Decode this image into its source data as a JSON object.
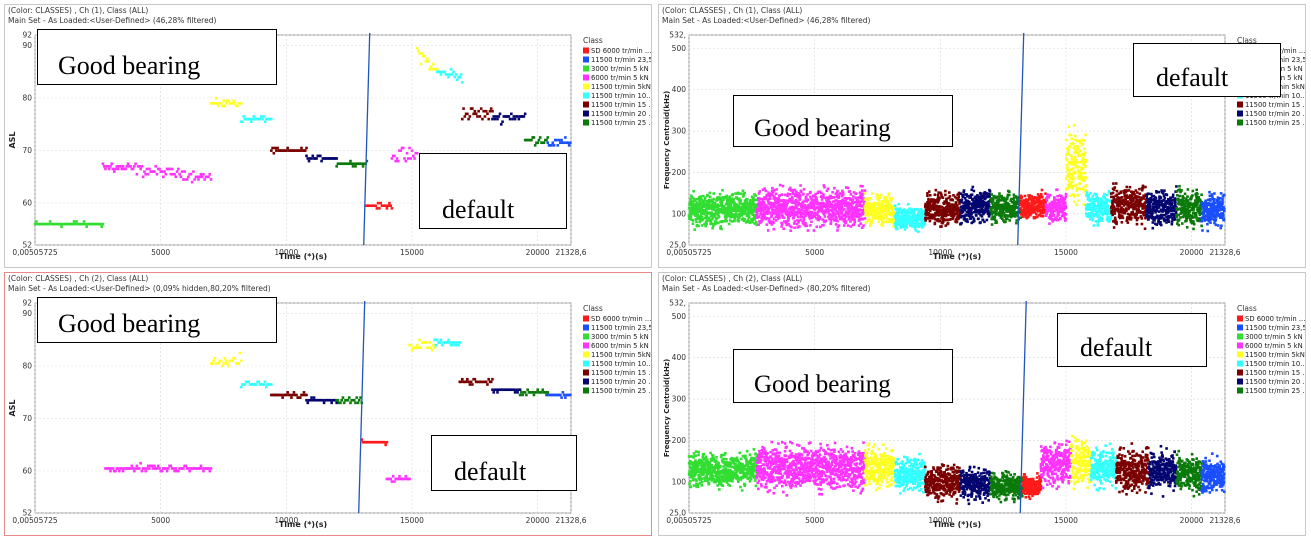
{
  "colors": {
    "SD 6000 tr/min": "#ff1a1a",
    "11500 tr/min 23,5": "#1a4fff",
    "3000 tr/min 5 kN": "#33dd33",
    "6000 tr/min 5 kN": "#ff33ff",
    "11500 tr/min 5kN": "#ffff22",
    "11500 tr/min 10": "#33ffff",
    "11500 tr/min 15": "#7a0000",
    "11500 tr/min 20": "#050570",
    "11500 tr/min 25": "#0a7a0a",
    "divider": "#2255bb"
  },
  "legend": {
    "title": "Class",
    "entries": [
      "SD 6000 tr/min ...",
      "11500 tr/min 23,5",
      "3000 tr/min 5 kN",
      "6000 tr/min 5 kN",
      "11500 tr/min 5kN",
      "11500 tr/min 10...",
      "11500 tr/min 15 ...",
      "11500 tr/min 20 ...",
      "11500 tr/min 25 ..."
    ]
  },
  "panels": {
    "top_left": {
      "header1": "(Color: CLASSES) , Ch (1), Class (ALL)",
      "header2": "Main Set - As Loaded:<User-Defined> (46,28% filtered)",
      "callout_good": "Good bearing",
      "callout_default": "default"
    },
    "top_right": {
      "header1": "(Color: CLASSES) , Ch (1), Class (ALL)",
      "header2": "Main Set - As Loaded:<User-Defined> (46,28% filtered)",
      "callout_good": "Good bearing",
      "callout_default": "default"
    },
    "bottom_left": {
      "header1": "(Color: CLASSES) , Ch (2), Class (ALL)",
      "header2": "Main Set - As Loaded:<User-Defined> (0,09% hidden,80,20% filtered)",
      "callout_good": "Good bearing",
      "callout_default": "default"
    },
    "bottom_right": {
      "header1": "(Color: CLASSES) , Ch (2), Class (ALL)",
      "header2": "Main Set - As Loaded:<User-Defined> (80,20% filtered)",
      "callout_good": "Good bearing",
      "callout_default": "default"
    }
  },
  "chart_data": [
    {
      "id": "top_left",
      "type": "scatter",
      "xlabel": "Time (*)(s)",
      "ylabel": "ASL",
      "xlim": [
        0.00505725,
        21328.6
      ],
      "ylim": [
        52,
        92
      ],
      "xticks": [
        "0,00505725",
        "5000",
        "10000",
        "15000",
        "20000",
        "21328,6"
      ],
      "yticks": [
        "52",
        "60",
        "70",
        "80",
        "90",
        "92"
      ],
      "divider_x": 13200,
      "segments": [
        {
          "cls": "3000 tr/min 5 kN",
          "x": [
            0,
            2700
          ],
          "y": [
            56,
            56
          ],
          "spread": 0.6
        },
        {
          "cls": "6000 tr/min 5 kN",
          "x": [
            2700,
            7000
          ],
          "y": [
            67,
            65
          ],
          "spread": 1.5
        },
        {
          "cls": "11500 tr/min 5kN",
          "x": [
            7000,
            8200
          ],
          "y": [
            79,
            79
          ],
          "spread": 1.0
        },
        {
          "cls": "11500 tr/min 10",
          "x": [
            8200,
            9400
          ],
          "y": [
            76,
            76
          ],
          "spread": 0.7
        },
        {
          "cls": "11500 tr/min 15",
          "x": [
            9400,
            10800
          ],
          "y": [
            70,
            70
          ],
          "spread": 0.7
        },
        {
          "cls": "11500 tr/min 20",
          "x": [
            10800,
            12000
          ],
          "y": [
            68.5,
            68.5
          ],
          "spread": 0.6
        },
        {
          "cls": "11500 tr/min 25",
          "x": [
            12000,
            13200
          ],
          "y": [
            67.5,
            67.5
          ],
          "spread": 0.6
        },
        {
          "cls": "SD 6000 tr/min",
          "x": [
            13200,
            14200
          ],
          "y": [
            59.5,
            59.5
          ],
          "spread": 0.6
        },
        {
          "cls": "6000 tr/min 5 kN",
          "x": [
            14200,
            15200
          ],
          "y": [
            69,
            69
          ],
          "spread": 2.5
        },
        {
          "cls": "11500 tr/min 5kN",
          "x": [
            15200,
            16000
          ],
          "y": [
            89,
            85
          ],
          "spread": 2.0
        },
        {
          "cls": "11500 tr/min 10",
          "x": [
            16000,
            17000
          ],
          "y": [
            85,
            84
          ],
          "spread": 1.5
        },
        {
          "cls": "11500 tr/min 15",
          "x": [
            17000,
            18200
          ],
          "y": [
            77,
            77
          ],
          "spread": 2.0
        },
        {
          "cls": "11500 tr/min 20",
          "x": [
            18200,
            19500
          ],
          "y": [
            76.5,
            76.5
          ],
          "spread": 1.5
        },
        {
          "cls": "11500 tr/min 25",
          "x": [
            19500,
            20400
          ],
          "y": [
            72,
            72
          ],
          "spread": 1.0
        },
        {
          "cls": "11500 tr/min 23,5",
          "x": [
            20400,
            21300
          ],
          "y": [
            71.5,
            71.5
          ],
          "spread": 1.2
        }
      ]
    },
    {
      "id": "top_right",
      "type": "scatter",
      "xlabel": "Time (*)(s)",
      "ylabel": "Frequency Centroid(kHz)",
      "xlim": [
        0.00505725,
        21328.6
      ],
      "ylim": [
        25,
        532
      ],
      "xticks": [
        "0,00505725",
        "5000",
        "10000",
        "15000",
        "20000",
        "21328,6"
      ],
      "yticks": [
        "25,0",
        "100",
        "200",
        "300",
        "400",
        "500",
        "532,"
      ],
      "divider_x": 13200,
      "segments": [
        {
          "cls": "3000 tr/min 5 kN",
          "x": [
            0,
            2700
          ],
          "y": [
            110,
            110
          ],
          "spread": 55
        },
        {
          "cls": "6000 tr/min 5 kN",
          "x": [
            2700,
            7000
          ],
          "y": [
            115,
            115
          ],
          "spread": 65
        },
        {
          "cls": "11500 tr/min 5kN",
          "x": [
            7000,
            8200
          ],
          "y": [
            110,
            110
          ],
          "spread": 50
        },
        {
          "cls": "11500 tr/min 10",
          "x": [
            8200,
            9400
          ],
          "y": [
            90,
            90
          ],
          "spread": 40
        },
        {
          "cls": "11500 tr/min 15",
          "x": [
            9400,
            10800
          ],
          "y": [
            110,
            110
          ],
          "spread": 55
        },
        {
          "cls": "11500 tr/min 20",
          "x": [
            10800,
            12000
          ],
          "y": [
            120,
            120
          ],
          "spread": 55
        },
        {
          "cls": "11500 tr/min 25",
          "x": [
            12000,
            13200
          ],
          "y": [
            115,
            115
          ],
          "spread": 50
        },
        {
          "cls": "SD 6000 tr/min",
          "x": [
            13200,
            14200
          ],
          "y": [
            120,
            120
          ],
          "spread": 45
        },
        {
          "cls": "6000 tr/min 5 kN",
          "x": [
            14200,
            15000
          ],
          "y": [
            115,
            115
          ],
          "spread": 50
        },
        {
          "cls": "11500 tr/min 5kN",
          "x": [
            15000,
            15800
          ],
          "y": [
            220,
            220
          ],
          "spread": 130
        },
        {
          "cls": "11500 tr/min 10",
          "x": [
            15800,
            16800
          ],
          "y": [
            115,
            115
          ],
          "spread": 55
        },
        {
          "cls": "11500 tr/min 15",
          "x": [
            16800,
            18200
          ],
          "y": [
            120,
            120
          ],
          "spread": 60
        },
        {
          "cls": "11500 tr/min 20",
          "x": [
            18200,
            19400
          ],
          "y": [
            115,
            115
          ],
          "spread": 60
        },
        {
          "cls": "11500 tr/min 25",
          "x": [
            19400,
            20400
          ],
          "y": [
            115,
            115
          ],
          "spread": 60
        },
        {
          "cls": "11500 tr/min 23,5",
          "x": [
            20400,
            21300
          ],
          "y": [
            110,
            110
          ],
          "spread": 60
        }
      ]
    },
    {
      "id": "bottom_left",
      "type": "scatter",
      "xlabel": "Time (*)(s)",
      "ylabel": "ASL",
      "xlim": [
        0.00505725,
        21328.6
      ],
      "ylim": [
        52,
        92
      ],
      "xticks": [
        "0,00505725",
        "5000",
        "10000",
        "15000",
        "20000",
        "21328,6"
      ],
      "yticks": [
        "52",
        "60",
        "70",
        "80",
        "90",
        "92"
      ],
      "divider_x": 13000,
      "segments": [
        {
          "cls": "6000 tr/min 5 kN",
          "x": [
            2800,
            7000
          ],
          "y": [
            60.5,
            60.5
          ],
          "spread": 0.8
        },
        {
          "cls": "11500 tr/min 5kN",
          "x": [
            7000,
            8200
          ],
          "y": [
            81,
            81
          ],
          "spread": 1.5
        },
        {
          "cls": "11500 tr/min 10",
          "x": [
            8200,
            9400
          ],
          "y": [
            76.5,
            76.5
          ],
          "spread": 0.7
        },
        {
          "cls": "11500 tr/min 15",
          "x": [
            9400,
            10800
          ],
          "y": [
            74.5,
            74.5
          ],
          "spread": 0.7
        },
        {
          "cls": "11500 tr/min 20",
          "x": [
            10800,
            12000
          ],
          "y": [
            73.5,
            73.5
          ],
          "spread": 0.7
        },
        {
          "cls": "11500 tr/min 25",
          "x": [
            12000,
            13000
          ],
          "y": [
            73.5,
            73.5
          ],
          "spread": 0.7
        },
        {
          "cls": "SD 6000 tr/min",
          "x": [
            13000,
            14000
          ],
          "y": [
            65.5,
            65.5
          ],
          "spread": 0.6
        },
        {
          "cls": "6000 tr/min 5 kN",
          "x": [
            14000,
            14900
          ],
          "y": [
            58.5,
            58.5
          ],
          "spread": 0.6
        },
        {
          "cls": "11500 tr/min 5kN",
          "x": [
            14900,
            15900
          ],
          "y": [
            84,
            84
          ],
          "spread": 1.5
        },
        {
          "cls": "11500 tr/min 10",
          "x": [
            15900,
            16900
          ],
          "y": [
            84.5,
            84.5
          ],
          "spread": 1.0
        },
        {
          "cls": "11500 tr/min 15",
          "x": [
            16900,
            18200
          ],
          "y": [
            77,
            77
          ],
          "spread": 0.8
        },
        {
          "cls": "11500 tr/min 20",
          "x": [
            18200,
            19300
          ],
          "y": [
            75.5,
            75.5
          ],
          "spread": 0.8
        },
        {
          "cls": "11500 tr/min 25",
          "x": [
            19300,
            20400
          ],
          "y": [
            75,
            75
          ],
          "spread": 0.8
        },
        {
          "cls": "11500 tr/min 23,5",
          "x": [
            20400,
            21300
          ],
          "y": [
            74.5,
            74.5
          ],
          "spread": 0.8
        }
      ]
    },
    {
      "id": "bottom_right",
      "type": "scatter",
      "xlabel": "Time (*)(s)",
      "ylabel": "Frequency Centroid(kHz)",
      "xlim": [
        0.00505725,
        21328.6
      ],
      "ylim": [
        25,
        532
      ],
      "xticks": [
        "0,00505725",
        "5000",
        "10000",
        "15000",
        "20000",
        "21328,6"
      ],
      "yticks": [
        "25,0",
        "100",
        "200",
        "300",
        "400",
        "500",
        "532,"
      ],
      "divider_x": 13300,
      "segments": [
        {
          "cls": "3000 tr/min 5 kN",
          "x": [
            0,
            2700
          ],
          "y": [
            130,
            130
          ],
          "spread": 55
        },
        {
          "cls": "6000 tr/min 5 kN",
          "x": [
            2700,
            7000
          ],
          "y": [
            135,
            135
          ],
          "spread": 75
        },
        {
          "cls": "11500 tr/min 5kN",
          "x": [
            7000,
            8200
          ],
          "y": [
            135,
            135
          ],
          "spread": 70
        },
        {
          "cls": "11500 tr/min 10",
          "x": [
            8200,
            9400
          ],
          "y": [
            120,
            120
          ],
          "spread": 55
        },
        {
          "cls": "11500 tr/min 15",
          "x": [
            9400,
            10800
          ],
          "y": [
            100,
            100
          ],
          "spread": 55
        },
        {
          "cls": "11500 tr/min 20",
          "x": [
            10800,
            12000
          ],
          "y": [
            95,
            95
          ],
          "spread": 50
        },
        {
          "cls": "11500 tr/min 25",
          "x": [
            12000,
            13300
          ],
          "y": [
            90,
            90
          ],
          "spread": 45
        },
        {
          "cls": "SD 6000 tr/min",
          "x": [
            13300,
            14000
          ],
          "y": [
            90,
            90
          ],
          "spread": 40
        },
        {
          "cls": "6000 tr/min 5 kN",
          "x": [
            14000,
            15200
          ],
          "y": [
            145,
            145
          ],
          "spread": 75
        },
        {
          "cls": "11500 tr/min 5kN",
          "x": [
            15200,
            16000
          ],
          "y": [
            150,
            150
          ],
          "spread": 85
        },
        {
          "cls": "11500 tr/min 10",
          "x": [
            16000,
            17000
          ],
          "y": [
            135,
            135
          ],
          "spread": 70
        },
        {
          "cls": "11500 tr/min 15",
          "x": [
            17000,
            18300
          ],
          "y": [
            130,
            130
          ],
          "spread": 70
        },
        {
          "cls": "11500 tr/min 20",
          "x": [
            18300,
            19400
          ],
          "y": [
            125,
            125
          ],
          "spread": 65
        },
        {
          "cls": "11500 tr/min 25",
          "x": [
            19400,
            20400
          ],
          "y": [
            120,
            120
          ],
          "spread": 60
        },
        {
          "cls": "11500 tr/min 23,5",
          "x": [
            20400,
            21300
          ],
          "y": [
            115,
            115
          ],
          "spread": 60
        }
      ]
    }
  ]
}
